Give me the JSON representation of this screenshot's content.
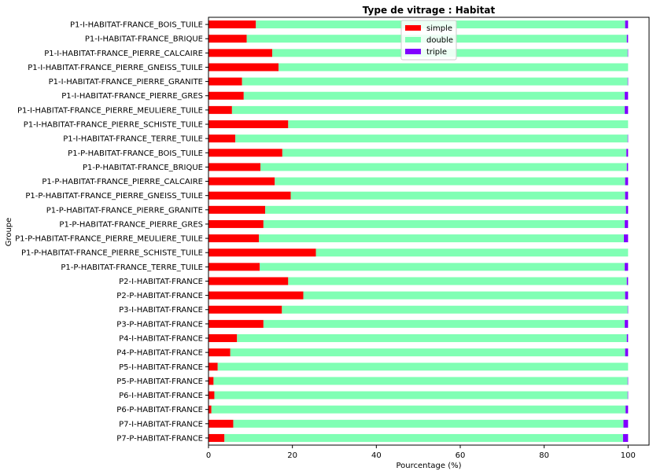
{
  "chart_data": {
    "type": "bar",
    "orientation": "horizontal",
    "stacked": true,
    "title": "Type de vitrage : Habitat",
    "xlabel": "Pourcentage (%)",
    "ylabel": "Groupe",
    "xlim": [
      0,
      105
    ],
    "xticks": [
      0,
      20,
      40,
      60,
      80,
      100
    ],
    "grid": false,
    "legend_position": "top-center",
    "categories": [
      "P1-I-HABITAT-FRANCE_BOIS_TUILE",
      "P1-I-HABITAT-FRANCE_BRIQUE",
      "P1-I-HABITAT-FRANCE_PIERRE_CALCAIRE",
      "P1-I-HABITAT-FRANCE_PIERRE_GNEISS_TUILE",
      "P1-I-HABITAT-FRANCE_PIERRE_GRANITE",
      "P1-I-HABITAT-FRANCE_PIERRE_GRES",
      "P1-I-HABITAT-FRANCE_PIERRE_MEULIERE_TUILE",
      "P1-I-HABITAT-FRANCE_PIERRE_SCHISTE_TUILE",
      "P1-I-HABITAT-FRANCE_TERRE_TUILE",
      "P1-P-HABITAT-FRANCE_BOIS_TUILE",
      "P1-P-HABITAT-FRANCE_BRIQUE",
      "P1-P-HABITAT-FRANCE_PIERRE_CALCAIRE",
      "P1-P-HABITAT-FRANCE_PIERRE_GNEISS_TUILE",
      "P1-P-HABITAT-FRANCE_PIERRE_GRANITE",
      "P1-P-HABITAT-FRANCE_PIERRE_GRES",
      "P1-P-HABITAT-FRANCE_PIERRE_MEULIERE_TUILE",
      "P1-P-HABITAT-FRANCE_PIERRE_SCHISTE_TUILE",
      "P1-P-HABITAT-FRANCE_TERRE_TUILE",
      "P2-I-HABITAT-FRANCE",
      "P2-P-HABITAT-FRANCE",
      "P3-I-HABITAT-FRANCE",
      "P3-P-HABITAT-FRANCE",
      "P4-I-HABITAT-FRANCE",
      "P4-P-HABITAT-FRANCE",
      "P5-I-HABITAT-FRANCE",
      "P5-P-HABITAT-FRANCE",
      "P6-I-HABITAT-FRANCE",
      "P6-P-HABITAT-FRANCE",
      "P7-I-HABITAT-FRANCE",
      "P7-P-HABITAT-FRANCE"
    ],
    "series": [
      {
        "name": "simple",
        "color": "#ff0000",
        "values": [
          11.3,
          9.1,
          15.2,
          16.7,
          8.0,
          8.4,
          5.6,
          19.0,
          6.4,
          17.6,
          12.4,
          15.8,
          19.6,
          13.5,
          13.1,
          12.0,
          25.6,
          12.2,
          19.0,
          22.6,
          17.5,
          13.1,
          6.8,
          5.2,
          2.2,
          1.2,
          1.4,
          0.7,
          5.9,
          3.8
        ]
      },
      {
        "name": "double",
        "color": "#80ffb4",
        "values": [
          88.0,
          90.6,
          84.7,
          83.3,
          91.9,
          90.8,
          93.6,
          81.0,
          93.5,
          82.0,
          87.3,
          83.5,
          79.7,
          86.0,
          86.1,
          87.0,
          74.4,
          87.0,
          80.7,
          76.7,
          82.4,
          86.1,
          92.9,
          94.1,
          97.8,
          98.7,
          98.5,
          98.7,
          93.0,
          95.0
        ]
      },
      {
        "name": "triple",
        "color": "#8000ff",
        "values": [
          0.7,
          0.3,
          0.1,
          0.0,
          0.1,
          0.8,
          0.8,
          0.0,
          0.1,
          0.4,
          0.3,
          0.7,
          0.7,
          0.5,
          0.8,
          1.0,
          0.0,
          0.8,
          0.3,
          0.7,
          0.1,
          0.8,
          0.3,
          0.7,
          0.0,
          0.1,
          0.1,
          0.6,
          1.1,
          1.2
        ]
      }
    ]
  }
}
